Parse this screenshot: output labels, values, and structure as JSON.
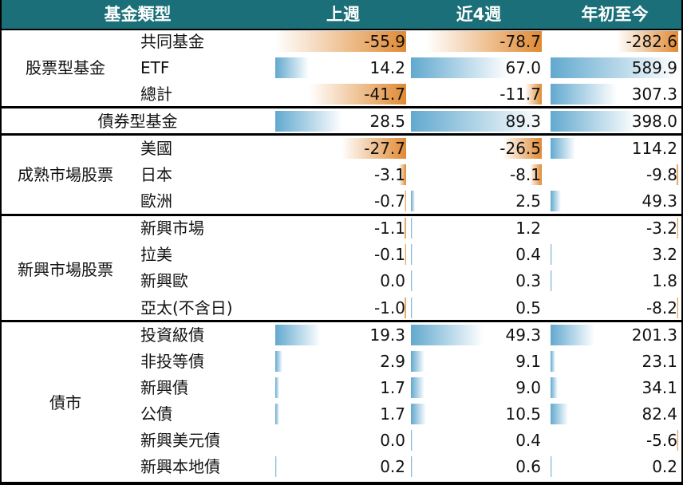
{
  "header": {
    "category": "基金類型",
    "col1": "上週",
    "col2": "近4週",
    "col3": "年初至今"
  },
  "colors": {
    "header_bg": "#1a6f78",
    "inflow_bar": "#62a9cf",
    "outflow_bar": "#e08a33"
  },
  "groups": [
    {
      "label": "股票型基金",
      "rows": [
        {
          "name": "共同基金",
          "values": [
            "-55.9",
            "-78.7",
            "-282.6"
          ]
        },
        {
          "name": "ETF",
          "values": [
            "14.2",
            "67.0",
            "589.9"
          ]
        },
        {
          "name": "總計",
          "values": [
            "-41.7",
            "-11.7",
            "307.3"
          ]
        }
      ]
    },
    {
      "label": "債券型基金",
      "rows": [
        {
          "name": "",
          "values": [
            "28.5",
            "89.3",
            "398.0"
          ]
        }
      ]
    },
    {
      "label": "成熟市場股票",
      "rows": [
        {
          "name": "美國",
          "values": [
            "-27.7",
            "-26.5",
            "114.2"
          ]
        },
        {
          "name": "日本",
          "values": [
            "-3.1",
            "-8.1",
            "-9.8"
          ]
        },
        {
          "name": "歐洲",
          "values": [
            "-0.7",
            "2.5",
            "49.3"
          ]
        }
      ]
    },
    {
      "label": "新興市場股票",
      "rows": [
        {
          "name": "新興市場",
          "values": [
            "-1.1",
            "1.2",
            "-3.2"
          ]
        },
        {
          "name": "拉美",
          "values": [
            "-0.1",
            "0.4",
            "3.2"
          ]
        },
        {
          "name": "新興歐",
          "values": [
            "0.0",
            "0.3",
            "1.8"
          ]
        },
        {
          "name": "亞太(不含日)",
          "values": [
            "-1.0",
            "0.5",
            "-8.2"
          ]
        }
      ]
    },
    {
      "label": "債市",
      "rows": [
        {
          "name": "投資級債",
          "values": [
            "19.3",
            "49.3",
            "201.3"
          ]
        },
        {
          "name": "非投等債",
          "values": [
            "2.9",
            "9.1",
            "23.1"
          ]
        },
        {
          "name": "新興債",
          "values": [
            "1.7",
            "9.0",
            "34.1"
          ]
        },
        {
          "name": "公債",
          "values": [
            "1.7",
            "10.5",
            "82.4"
          ]
        },
        {
          "name": "新興美元債",
          "values": [
            "0.0",
            "0.4",
            "-5.6"
          ]
        },
        {
          "name": "新興本地債",
          "values": [
            "0.2",
            "0.6",
            "0.2"
          ]
        }
      ]
    }
  ]
}
